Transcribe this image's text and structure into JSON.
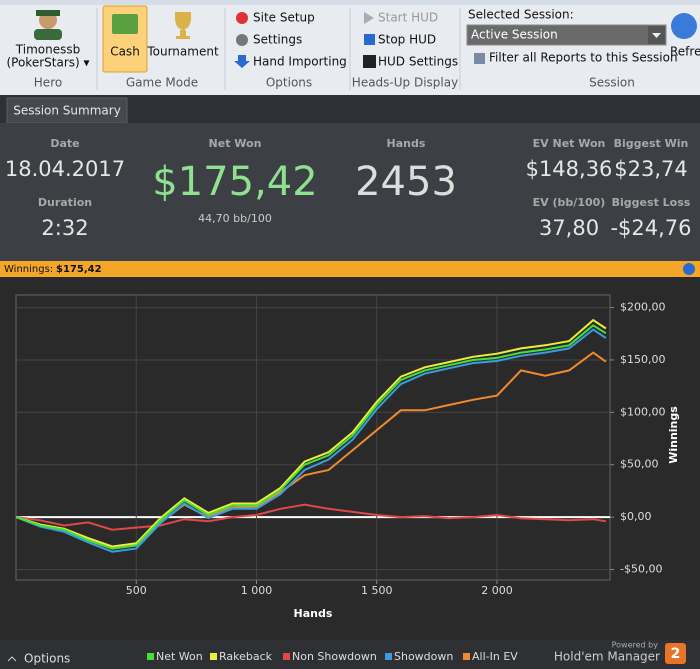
{
  "ribbon": {
    "hero": {
      "name": "Timonessb",
      "site": "(PokerStars) ▾",
      "group": "Hero"
    },
    "game_mode": {
      "cash": "Cash",
      "tournament": "Tournament",
      "group": "Game Mode"
    },
    "options": {
      "items": [
        "Site Setup",
        "Settings",
        "Hand Importing"
      ],
      "group": "Options"
    },
    "hud": {
      "items": [
        "Start HUD",
        "Stop HUD",
        "HUD Settings"
      ],
      "group": "Heads-Up Display"
    },
    "session": {
      "label": "Selected Session:",
      "selected": "Active Session",
      "filter": "Filter all Reports to this Session",
      "group": "Session"
    },
    "refresh": "Refre"
  },
  "tab": "Session Summary",
  "summary": {
    "date_label": "Date",
    "date": "18.04.2017",
    "duration_label": "Duration",
    "duration": "2:32",
    "net_won_label": "Net Won",
    "net_won": "$175,42",
    "bb100": "44,70 bb/100",
    "hands_label": "Hands",
    "hands": "2453",
    "ev_net_won_label": "EV Net Won",
    "ev_net_won": "$148,36",
    "biggest_win_label": "Biggest Win",
    "biggest_win": "$23,74",
    "ev_bb100_label": "EV (bb/100)",
    "ev_bb100": "37,80",
    "biggest_loss_label": "Biggest Loss",
    "biggest_loss": "-$24,76"
  },
  "winnings_bar": {
    "label": "Winnings:",
    "value": "$175,42"
  },
  "chart_data": {
    "type": "line",
    "x_label": "Hands",
    "y_label": "Winnings",
    "x": [
      0,
      100,
      200,
      300,
      400,
      500,
      600,
      700,
      800,
      900,
      1000,
      1100,
      1200,
      1300,
      1400,
      1500,
      1600,
      1700,
      1800,
      1900,
      2000,
      2100,
      2200,
      2300,
      2400,
      2453
    ],
    "series": [
      {
        "name": "Net Won",
        "color": "#44e03a",
        "values": [
          0,
          -8,
          -12,
          -22,
          -30,
          -27,
          -3,
          16,
          2,
          11,
          11,
          26,
          50,
          59,
          78,
          107,
          131,
          140,
          145,
          150,
          152,
          157,
          160,
          164,
          183,
          175.42
        ]
      },
      {
        "name": "Rakeback",
        "color": "#eeee3a",
        "values": [
          0,
          -7,
          -11,
          -20,
          -28,
          -25,
          -1,
          18,
          4,
          13,
          13,
          28,
          53,
          62,
          81,
          110,
          134,
          143,
          148,
          153,
          156,
          161,
          164,
          168,
          188,
          180
        ]
      },
      {
        "name": "Non Showdown",
        "color": "#e04848",
        "values": [
          0,
          -3,
          -8,
          -5,
          -12,
          -10,
          -8,
          -2,
          -4,
          0,
          2,
          8,
          12,
          8,
          5,
          2,
          0,
          1,
          -1,
          0,
          2,
          -1,
          -2,
          -3,
          -2,
          -4
        ]
      },
      {
        "name": "Showdown",
        "color": "#3a9be0",
        "values": [
          0,
          -9,
          -14,
          -24,
          -33,
          -30,
          -6,
          13,
          -1,
          8,
          8,
          22,
          45,
          55,
          74,
          103,
          127,
          137,
          142,
          147,
          149,
          154,
          157,
          161,
          179,
          171
        ]
      },
      {
        "name": "All-In EV",
        "color": "#f08a30",
        "values": [
          0,
          -8,
          -12,
          -22,
          -30,
          -27,
          -5,
          12,
          0,
          9,
          10,
          24,
          40,
          45,
          64,
          83,
          102,
          102,
          107,
          112,
          116,
          140,
          135,
          140,
          157,
          148.36
        ]
      }
    ],
    "xlim": [
      0,
      2470
    ],
    "ylim": [
      -60,
      212
    ],
    "xticks": [
      500,
      {
        "value": 1000,
        "label": "1 000"
      },
      {
        "value": 1500,
        "label": "1 500"
      },
      {
        "value": 2000,
        "label": "2 000"
      }
    ],
    "yticks": [
      {
        "value": -50,
        "label": "-$50,00"
      },
      {
        "value": 0,
        "label": "$0,00"
      },
      {
        "value": 50,
        "label": "$50,00"
      },
      {
        "value": 100,
        "label": "$100,00"
      },
      {
        "value": 150,
        "label": "$150,00"
      },
      {
        "value": 200,
        "label": "$200,00"
      }
    ],
    "grid": true
  },
  "footer": {
    "options": "Options",
    "powered": "Powered by",
    "brand": "Hold'em Manager",
    "badge": "2"
  }
}
